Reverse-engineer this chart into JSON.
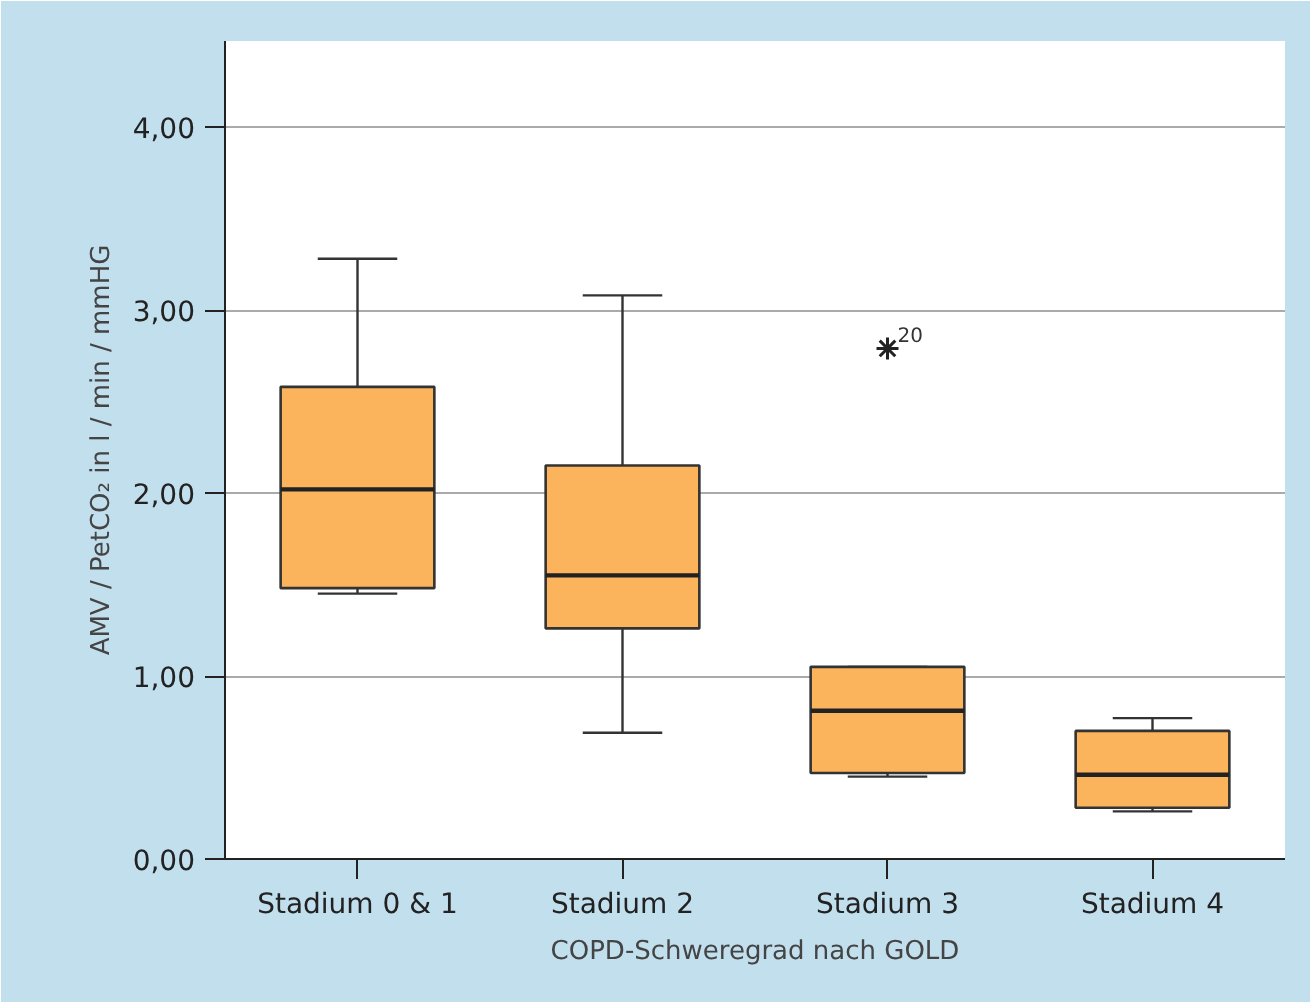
{
  "chart_data": {
    "type": "box",
    "xlabel": "COPD-Schweregrad nach GOLD",
    "ylabel": "AMV / PetCO₂ in l / min / mmHG",
    "categories": [
      "Stadium 0 & 1",
      "Stadium 2",
      "Stadium 3",
      "Stadium 4"
    ],
    "color": "#fbb45c",
    "boxes": [
      {
        "low": 1.45,
        "q1": 1.48,
        "median": 2.02,
        "q3": 2.58,
        "high": 3.28
      },
      {
        "low": 0.69,
        "q1": 1.26,
        "median": 1.55,
        "q3": 2.15,
        "high": 3.08
      },
      {
        "low": 0.45,
        "q1": 0.47,
        "median": 0.81,
        "q3": 1.05,
        "high": 1.05,
        "outliers": [
          2.79
        ]
      },
      {
        "low": 0.26,
        "q1": 0.28,
        "median": 0.46,
        "q3": 0.7,
        "high": 0.77
      }
    ],
    "marker": "star",
    "annotations": [
      "20"
    ],
    "ylim": [
      0,
      4.47
    ],
    "yticks": [
      {
        "value": 0,
        "label": "0,00"
      },
      {
        "value": 1,
        "label": "1,00"
      },
      {
        "value": 2,
        "label": "2,00"
      },
      {
        "value": 3,
        "label": "3,00"
      },
      {
        "value": 4,
        "label": "4,00"
      }
    ],
    "grid": "y"
  }
}
